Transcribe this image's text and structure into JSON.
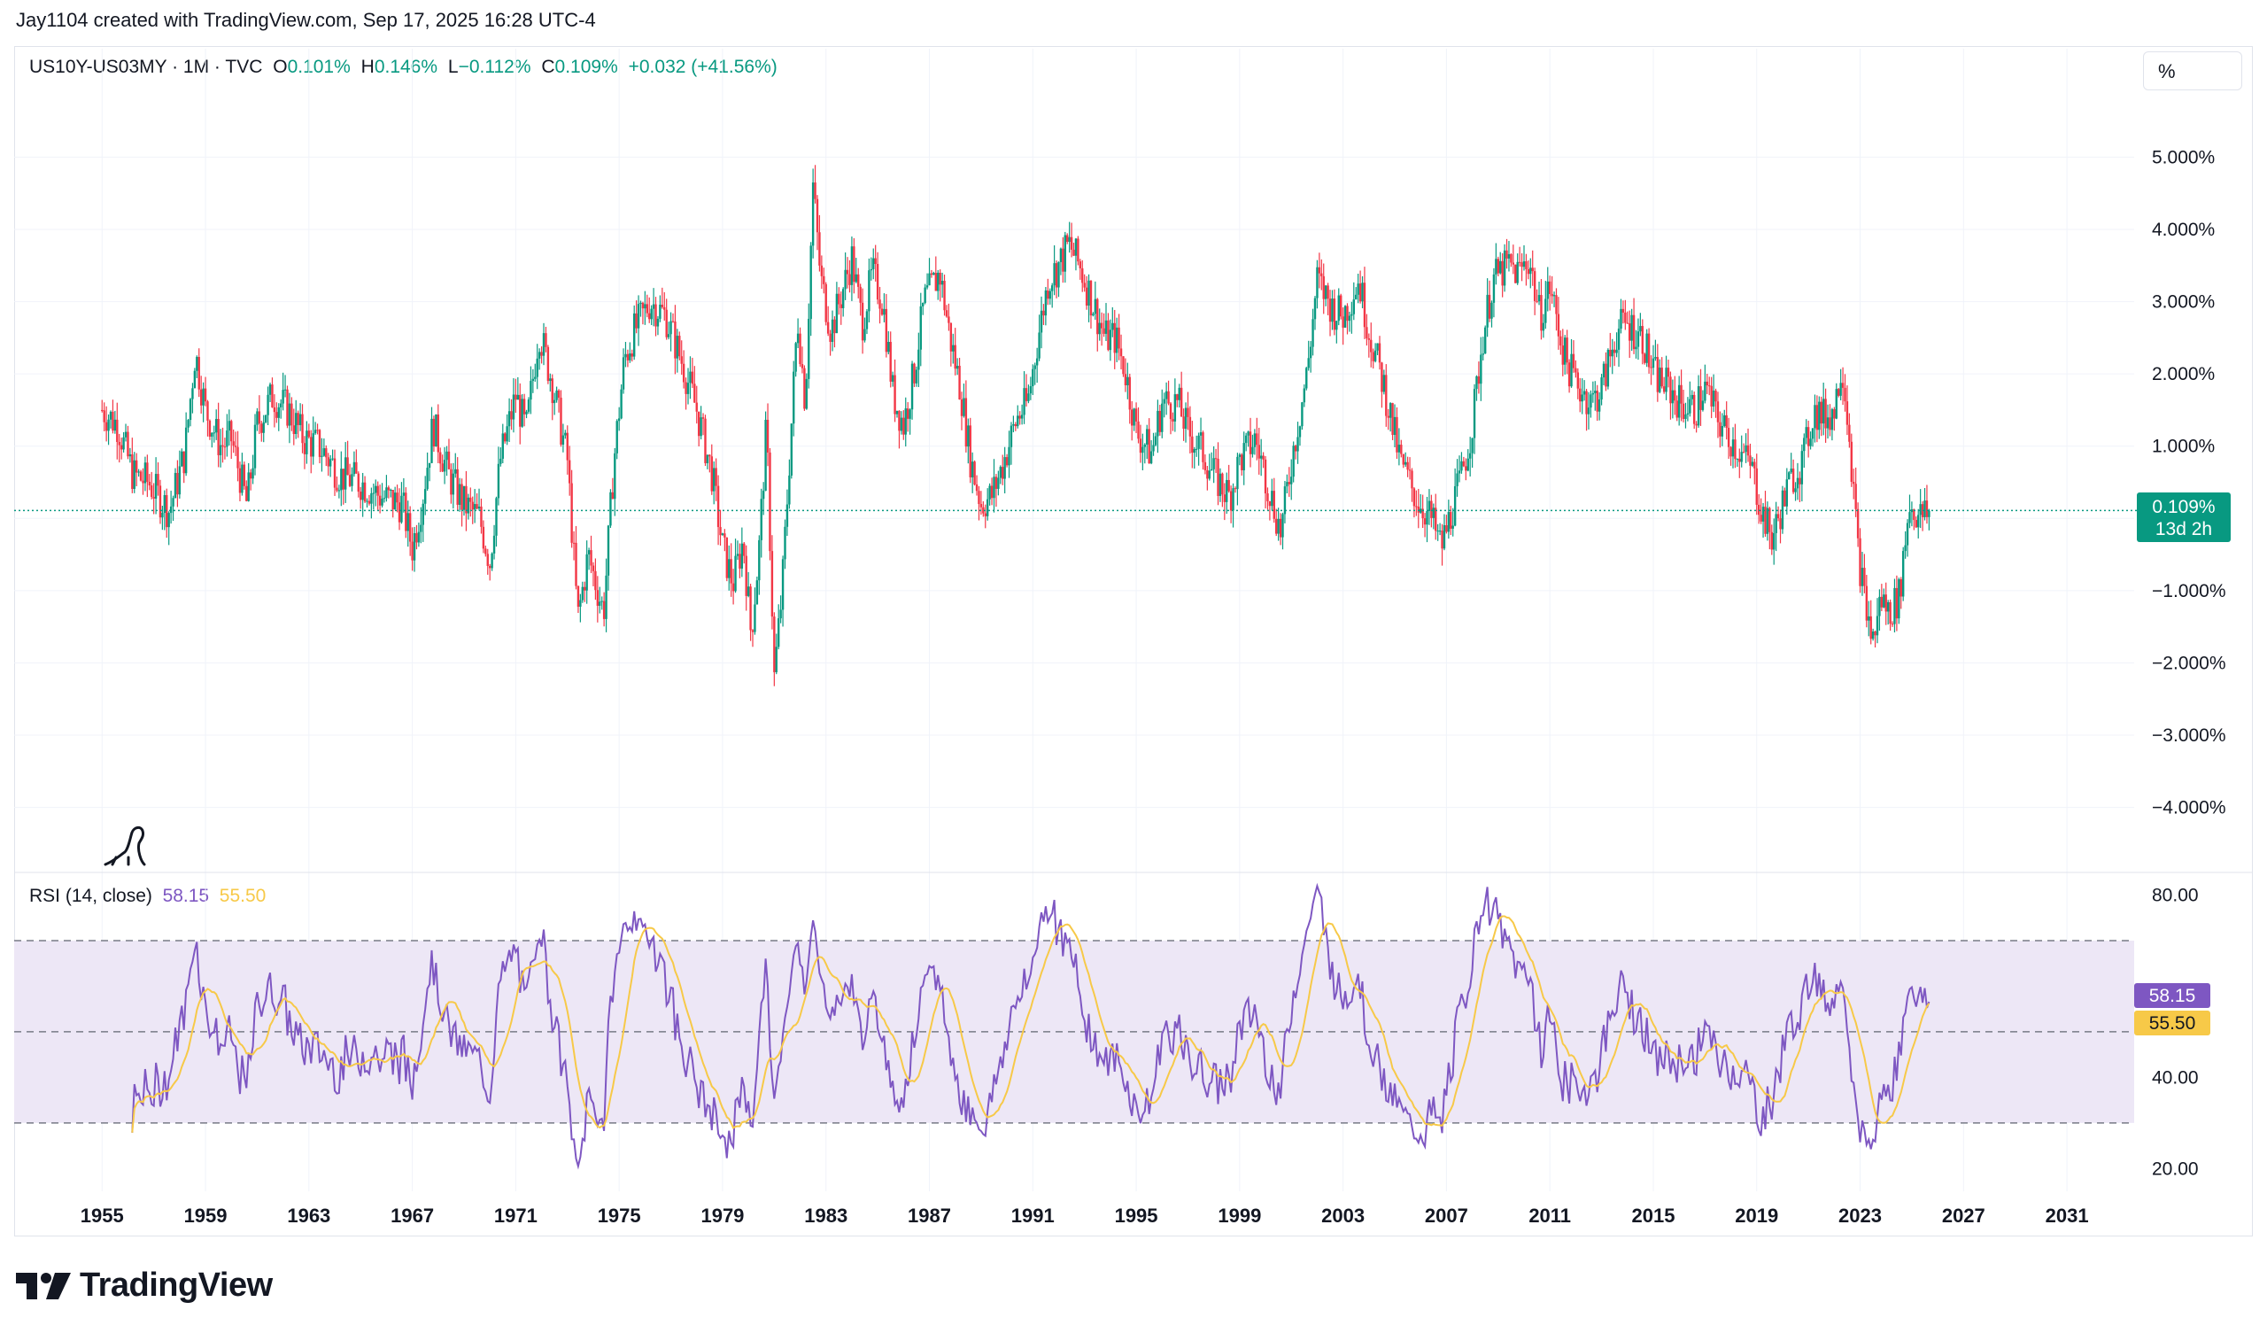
{
  "header": {
    "credit": "Jay1104 created with TradingView.com, Sep 17, 2025 16:28 UTC-4"
  },
  "legend": {
    "symbol": "US10Y-US03MY · 1M · TVC",
    "o_label": "O",
    "o_value": "0.101%",
    "h_label": "H",
    "h_value": "0.146%",
    "l_label": "L",
    "l_value": "−0.112%",
    "c_label": "C",
    "c_value": "0.109%",
    "change": "+0.032 (+41.56%)"
  },
  "scale_button": "%",
  "rsi_legend": {
    "label": "RSI (14, close)",
    "rsi_value": "58.15",
    "ma_value": "55.50"
  },
  "price_badge": {
    "value": "0.109%",
    "countdown": "13d 2h"
  },
  "rsi_badges": {
    "rsi": "58.15",
    "ma": "55.50"
  },
  "brand": {
    "name": "TradingView"
  },
  "colors": {
    "up": "#089981",
    "down": "#f23645",
    "rsi": "#7e57c2",
    "rsi_ma": "#f7c948",
    "band": "#ede7f6"
  },
  "chart_data": [
    {
      "type": "candlestick",
      "title": "US10Y-US03MY · 1M · TVC",
      "y_ticks": [
        "5.000%",
        "4.000%",
        "3.000%",
        "2.000%",
        "1.000%",
        "−1.000%",
        "−2.000%",
        "−3.000%",
        "−4.000%"
      ],
      "y_tick_values": [
        5,
        4,
        3,
        2,
        1,
        -1,
        -2,
        -3,
        -4
      ],
      "ylim": [
        -4.9,
        5.9
      ],
      "x_ticks": [
        "1955",
        "1959",
        "1963",
        "1967",
        "1971",
        "1975",
        "1979",
        "1983",
        "1987",
        "1991",
        "1995",
        "1999",
        "2003",
        "2007",
        "2011",
        "2015",
        "2019",
        "2023",
        "2027",
        "2031"
      ],
      "xlim": [
        1951.6,
        2033.6
      ],
      "last_value": 0.109,
      "series_anchors": [
        [
          1955.0,
          1.5
        ],
        [
          1955.6,
          1.3
        ],
        [
          1956.2,
          0.6
        ],
        [
          1956.8,
          0.5
        ],
        [
          1957.6,
          0.1
        ],
        [
          1958.2,
          0.9
        ],
        [
          1958.6,
          2.3
        ],
        [
          1959.0,
          1.5
        ],
        [
          1959.6,
          1.0
        ],
        [
          1960.0,
          1.1
        ],
        [
          1960.6,
          0.2
        ],
        [
          1961.0,
          1.3
        ],
        [
          1961.6,
          1.7
        ],
        [
          1962.2,
          1.5
        ],
        [
          1962.8,
          1.1
        ],
        [
          1963.4,
          1.0
        ],
        [
          1964.2,
          0.6
        ],
        [
          1965.0,
          0.5
        ],
        [
          1965.8,
          0.3
        ],
        [
          1966.6,
          0.2
        ],
        [
          1967.0,
          -0.4
        ],
        [
          1967.4,
          0.3
        ],
        [
          1967.8,
          1.3
        ],
        [
          1968.4,
          0.6
        ],
        [
          1969.0,
          0.2
        ],
        [
          1969.6,
          0.0
        ],
        [
          1970.0,
          -0.6
        ],
        [
          1970.4,
          0.8
        ],
        [
          1971.0,
          1.7
        ],
        [
          1971.4,
          1.2
        ],
        [
          1971.9,
          2.6
        ],
        [
          1972.4,
          1.9
        ],
        [
          1973.0,
          0.8
        ],
        [
          1973.4,
          -1.4
        ],
        [
          1973.8,
          -0.5
        ],
        [
          1974.4,
          -1.3
        ],
        [
          1974.8,
          0.8
        ],
        [
          1975.2,
          2.2
        ],
        [
          1975.6,
          2.6
        ],
        [
          1976.2,
          3.0
        ],
        [
          1976.8,
          2.8
        ],
        [
          1977.4,
          2.2
        ],
        [
          1978.0,
          1.5
        ],
        [
          1978.6,
          0.6
        ],
        [
          1979.0,
          -0.4
        ],
        [
          1979.4,
          -0.9
        ],
        [
          1979.8,
          -0.3
        ],
        [
          1980.1,
          -1.6
        ],
        [
          1980.4,
          -0.5
        ],
        [
          1980.7,
          1.3
        ],
        [
          1981.0,
          -2.2
        ],
        [
          1981.3,
          -1.0
        ],
        [
          1981.6,
          0.9
        ],
        [
          1981.9,
          2.8
        ],
        [
          1982.2,
          1.6
        ],
        [
          1982.5,
          4.6
        ],
        [
          1982.8,
          3.3
        ],
        [
          1983.2,
          2.6
        ],
        [
          1983.6,
          3.1
        ],
        [
          1984.0,
          3.6
        ],
        [
          1984.4,
          2.7
        ],
        [
          1984.8,
          3.4
        ],
        [
          1985.2,
          3.0
        ],
        [
          1985.6,
          1.7
        ],
        [
          1986.0,
          1.3
        ],
        [
          1986.4,
          2.0
        ],
        [
          1986.8,
          3.0
        ],
        [
          1987.4,
          3.4
        ],
        [
          1987.8,
          2.5
        ],
        [
          1988.2,
          1.8
        ],
        [
          1988.6,
          0.8
        ],
        [
          1989.0,
          0.2
        ],
        [
          1989.4,
          0.3
        ],
        [
          1989.8,
          0.7
        ],
        [
          1990.4,
          1.4
        ],
        [
          1990.8,
          1.6
        ],
        [
          1991.2,
          2.5
        ],
        [
          1991.6,
          3.3
        ],
        [
          1992.0,
          3.5
        ],
        [
          1992.4,
          3.8
        ],
        [
          1992.8,
          3.5
        ],
        [
          1993.4,
          2.9
        ],
        [
          1993.8,
          2.5
        ],
        [
          1994.2,
          2.5
        ],
        [
          1994.6,
          2.0
        ],
        [
          1995.0,
          1.2
        ],
        [
          1995.6,
          0.9
        ],
        [
          1996.0,
          1.6
        ],
        [
          1996.6,
          1.6
        ],
        [
          1997.0,
          1.2
        ],
        [
          1997.6,
          0.9
        ],
        [
          1998.0,
          0.6
        ],
        [
          1998.6,
          0.3
        ],
        [
          1999.0,
          0.8
        ],
        [
          1999.6,
          1.1
        ],
        [
          2000.0,
          0.6
        ],
        [
          2000.6,
          -0.2
        ],
        [
          2001.0,
          0.8
        ],
        [
          2001.6,
          2.0
        ],
        [
          2002.0,
          3.3
        ],
        [
          2002.6,
          2.9
        ],
        [
          2003.0,
          2.8
        ],
        [
          2003.6,
          3.3
        ],
        [
          2004.0,
          2.6
        ],
        [
          2004.6,
          1.8
        ],
        [
          2005.2,
          0.8
        ],
        [
          2005.8,
          0.3
        ],
        [
          2006.4,
          0.0
        ],
        [
          2006.8,
          -0.4
        ],
        [
          2007.2,
          0.1
        ],
        [
          2007.6,
          0.6
        ],
        [
          2008.0,
          1.3
        ],
        [
          2008.4,
          2.5
        ],
        [
          2008.8,
          3.3
        ],
        [
          2009.4,
          3.5
        ],
        [
          2009.8,
          3.4
        ],
        [
          2010.2,
          3.6
        ],
        [
          2010.6,
          2.8
        ],
        [
          2011.0,
          3.2
        ],
        [
          2011.6,
          2.2
        ],
        [
          2012.0,
          1.9
        ],
        [
          2012.6,
          1.6
        ],
        [
          2013.0,
          1.8
        ],
        [
          2013.6,
          2.6
        ],
        [
          2014.0,
          2.7
        ],
        [
          2014.6,
          2.5
        ],
        [
          2015.0,
          2.0
        ],
        [
          2015.6,
          1.8
        ],
        [
          2016.0,
          1.6
        ],
        [
          2016.6,
          1.5
        ],
        [
          2017.0,
          1.8
        ],
        [
          2017.6,
          1.3
        ],
        [
          2018.2,
          1.0
        ],
        [
          2018.8,
          0.7
        ],
        [
          2019.2,
          0.1
        ],
        [
          2019.6,
          -0.3
        ],
        [
          2020.0,
          0.2
        ],
        [
          2020.4,
          0.6
        ],
        [
          2020.8,
          0.8
        ],
        [
          2021.2,
          1.5
        ],
        [
          2021.6,
          1.4
        ],
        [
          2022.0,
          1.5
        ],
        [
          2022.3,
          2.2
        ],
        [
          2022.6,
          1.1
        ],
        [
          2022.9,
          -0.4
        ],
        [
          2023.2,
          -1.2
        ],
        [
          2023.5,
          -1.7
        ],
        [
          2023.8,
          -1.1
        ],
        [
          2024.1,
          -1.3
        ],
        [
          2024.5,
          -1.1
        ],
        [
          2024.9,
          0.2
        ],
        [
          2025.3,
          0.0
        ],
        [
          2025.7,
          0.1
        ]
      ]
    },
    {
      "type": "line",
      "title": "RSI (14, close)",
      "y_ticks": [
        "80.00",
        "40.00",
        "20.00"
      ],
      "y_tick_values": [
        80,
        40,
        20
      ],
      "ylim": [
        15,
        84
      ],
      "bands": [
        30,
        50,
        70
      ],
      "series": [
        {
          "name": "RSI",
          "last": 58.15
        },
        {
          "name": "MA",
          "last": 55.5
        }
      ]
    }
  ]
}
